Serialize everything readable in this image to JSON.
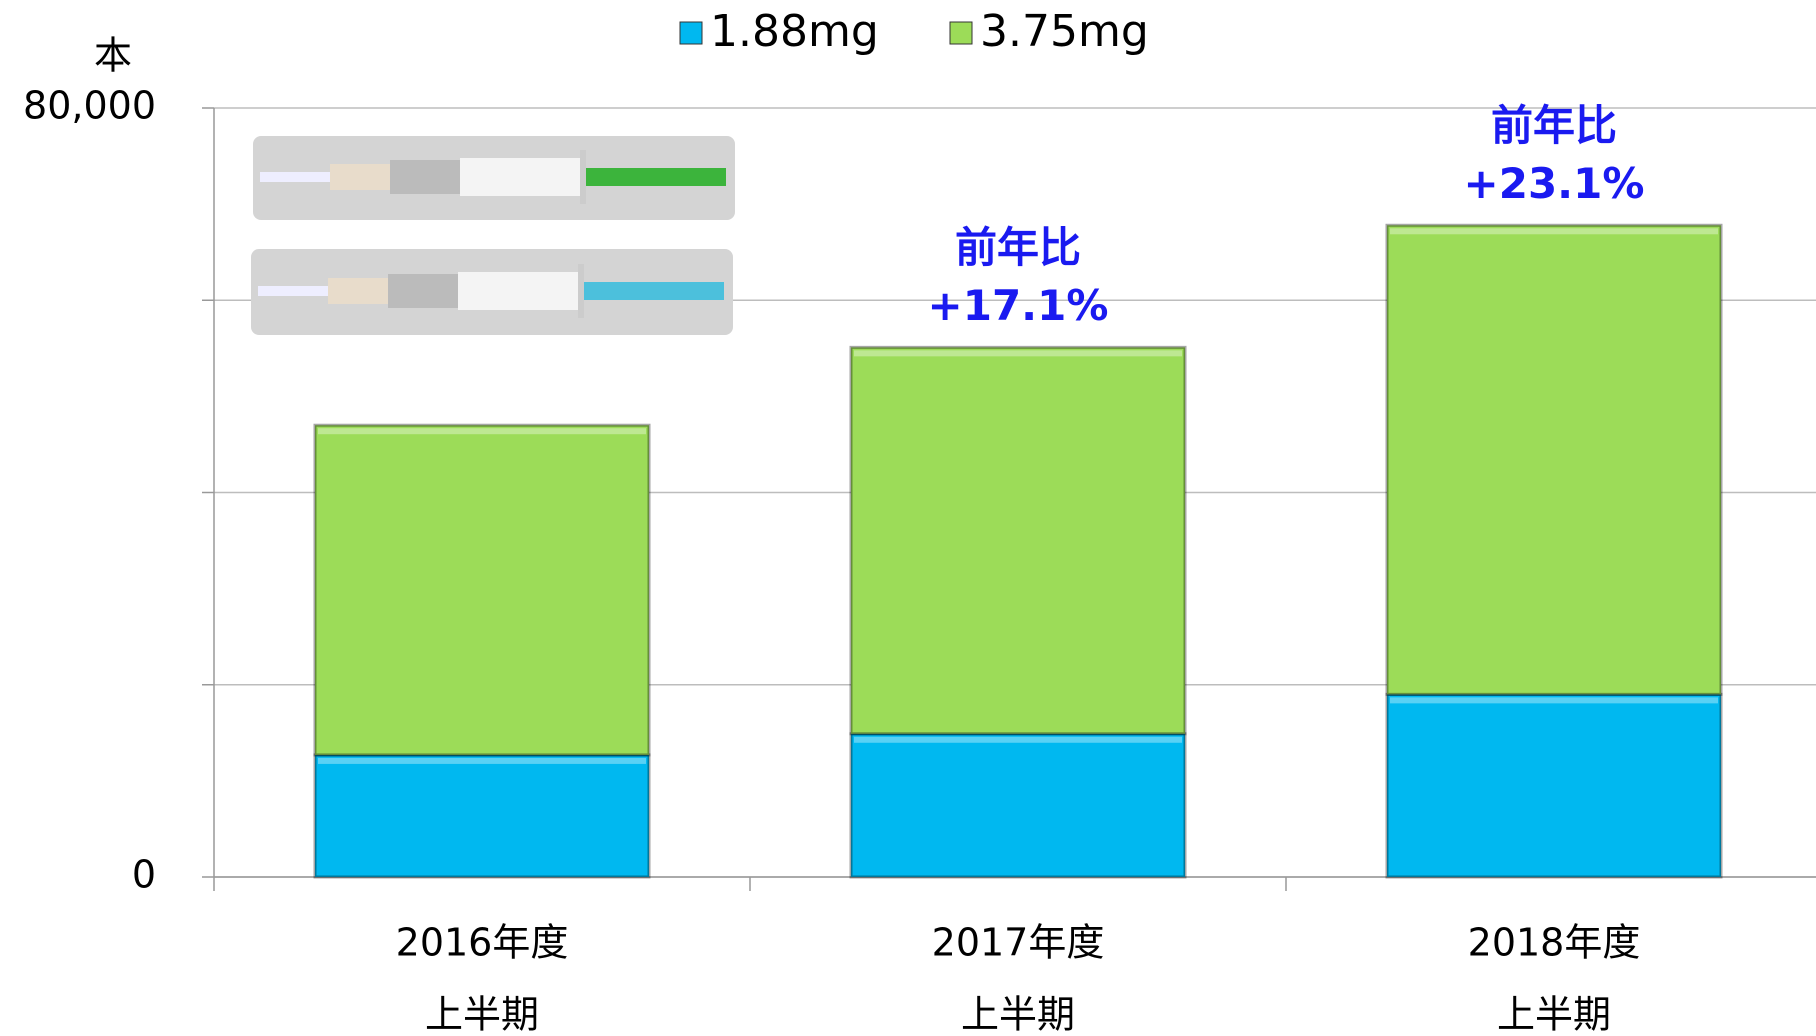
{
  "chart_data": {
    "type": "stacked-bar",
    "y_label": "本",
    "categories": [
      [
        "2016年度",
        "上半期"
      ],
      [
        "2017年度",
        "上半期"
      ],
      [
        "2018年度",
        "上半期"
      ]
    ],
    "series": [
      {
        "name": "1.88mg",
        "color": "#00b8f0",
        "values": [
          12700,
          14900,
          19000
        ]
      },
      {
        "name": "3.75mg",
        "color": "#9cdc58",
        "values": [
          34300,
          40200,
          48800
        ]
      }
    ],
    "annotations": [
      null,
      [
        "前年比",
        "+17.1%"
      ],
      [
        "前年比",
        "+23.1%"
      ]
    ],
    "annotation_color": "#1a1af0",
    "ylim": [
      0,
      80000
    ],
    "yticks": [
      0,
      {
        "value": 20000,
        "label": null
      },
      {
        "value": 40000,
        "label": null
      },
      {
        "value": 60000,
        "label": null
      },
      {
        "value": 80000,
        "label": "80,000"
      }
    ],
    "grid": true,
    "legend": "top"
  }
}
